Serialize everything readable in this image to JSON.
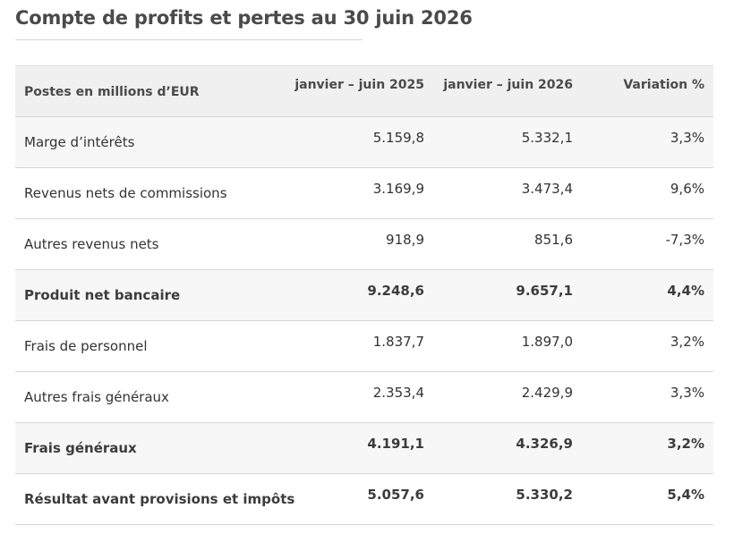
{
  "page": {
    "title": "Compte de profits et pertes au 30 juin 2026"
  },
  "table": {
    "headers": [
      "Postes en millions d’EUR",
      "janvier – juin 2025",
      "janvier – juin 2026",
      "Variation %"
    ],
    "rows": [
      {
        "label": "Marge d’intérêts",
        "h1_2025": "5.159,8",
        "h1_2026": "5.332,1",
        "variation": "3,3%",
        "bold": false
      },
      {
        "label": "Revenus nets de commissions",
        "h1_2025": "3.169,9",
        "h1_2026": "3.473,4",
        "variation": "9,6%",
        "bold": false
      },
      {
        "label": "Autres revenus nets",
        "h1_2025": "918,9",
        "h1_2026": "851,6",
        "variation": "-7,3%",
        "bold": false
      },
      {
        "label": "Produit net bancaire",
        "h1_2025": "9.248,6",
        "h1_2026": "9.657,1",
        "variation": "4,4%",
        "bold": true
      },
      {
        "label": "Frais de personnel",
        "h1_2025": "1.837,7",
        "h1_2026": "1.897,0",
        "variation": "3,2%",
        "bold": false
      },
      {
        "label": "Autres frais généraux",
        "h1_2025": "2.353,4",
        "h1_2026": "2.429,9",
        "variation": "3,3%",
        "bold": false
      },
      {
        "label": "Frais généraux",
        "h1_2025": "4.191,1",
        "h1_2026": "4.326,9",
        "variation": "3,2%",
        "bold": true
      },
      {
        "label": "Résultat avant provisions et impôts",
        "h1_2025": "5.057,6",
        "h1_2026": "5.330,2",
        "variation": "5,4%",
        "bold": true
      }
    ]
  },
  "colors": {
    "header_bg": "#f0f0f0",
    "alt_row_bg": "#f7f7f7",
    "row_border": "#d6d6d6",
    "text": "#333333"
  }
}
